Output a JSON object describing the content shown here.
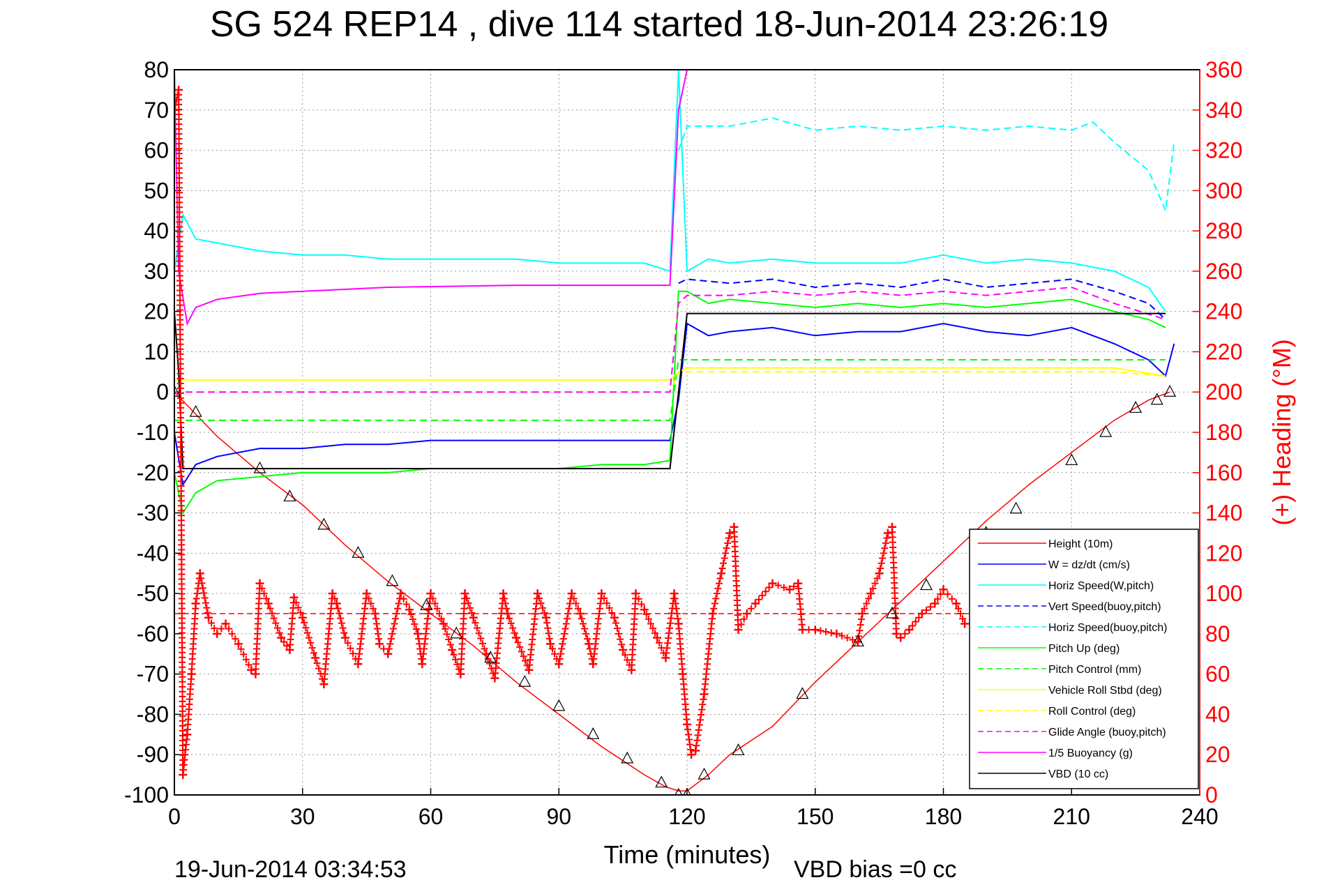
{
  "chart_data": {
    "type": "line",
    "title": "SG 524   REP14  , dive 114 started 18-Jun-2014 23:26:19",
    "xlabel": "Time (minutes)",
    "y2label": "(+) Heading (°M)",
    "footer_left": "19-Jun-2014 03:34:53",
    "footer_right": "VBD bias =0 cc",
    "xlim": [
      0,
      240
    ],
    "ylim": [
      -100,
      80
    ],
    "y2lim": [
      0,
      360
    ],
    "xticks": [
      0,
      30,
      60,
      90,
      120,
      150,
      180,
      210,
      240
    ],
    "yticks": [
      80,
      70,
      60,
      50,
      40,
      30,
      20,
      10,
      0,
      -10,
      -20,
      -30,
      -40,
      -50,
      -60,
      -70,
      -80,
      -90,
      -100
    ],
    "y2ticks": [
      360,
      340,
      320,
      300,
      280,
      260,
      240,
      220,
      200,
      180,
      160,
      140,
      120,
      100,
      80,
      60,
      40,
      20,
      0
    ],
    "grid": true,
    "legend_position": "lower-right",
    "colors": {
      "red": "#ff0000",
      "blue": "#0000ff",
      "cyan": "#00ffff",
      "green": "#00ff00",
      "yellow": "#ffff00",
      "magenta": "#ff00ff",
      "black": "#000000"
    },
    "series": [
      {
        "name": "Height (10m)",
        "color": "#ff0000",
        "style": "solid",
        "x": [
          0,
          10,
          20,
          30,
          40,
          50,
          60,
          70,
          80,
          90,
          100,
          110,
          115,
          118,
          120,
          125,
          130,
          140,
          150,
          160,
          170,
          180,
          190,
          200,
          210,
          220,
          228,
          233
        ],
        "values": [
          0,
          -11,
          -20,
          -28,
          -38,
          -47,
          -55,
          -63,
          -72,
          -80,
          -88,
          -95,
          -98,
          -99,
          -99,
          -95,
          -90,
          -83,
          -72,
          -62,
          -52,
          -42,
          -32,
          -23,
          -15,
          -7,
          -2,
          0
        ]
      },
      {
        "name": "W = dz/dt (cm/s)",
        "color": "#0000ff",
        "style": "solid",
        "x": [
          0,
          2,
          5,
          10,
          20,
          30,
          40,
          50,
          60,
          70,
          80,
          90,
          100,
          110,
          116,
          118,
          120,
          125,
          130,
          140,
          150,
          160,
          170,
          180,
          190,
          200,
          210,
          220,
          228,
          232,
          234
        ],
        "values": [
          -10,
          -23,
          -18,
          -16,
          -14,
          -14,
          -13,
          -13,
          -12,
          -12,
          -12,
          -12,
          -12,
          -12,
          -12,
          -2,
          17,
          14,
          15,
          16,
          14,
          15,
          15,
          17,
          15,
          14,
          16,
          12,
          8,
          4,
          12
        ]
      },
      {
        "name": "Horiz Speed(W,pitch)",
        "color": "#00ffff",
        "style": "solid",
        "x": [
          0,
          2,
          5,
          10,
          20,
          30,
          40,
          50,
          60,
          70,
          80,
          90,
          100,
          110,
          116,
          118,
          120,
          125,
          130,
          140,
          150,
          160,
          170,
          180,
          190,
          200,
          210,
          220,
          228,
          232
        ],
        "values": [
          30,
          44,
          38,
          37,
          35,
          34,
          34,
          33,
          33,
          33,
          33,
          32,
          32,
          32,
          30,
          80,
          30,
          33,
          32,
          33,
          32,
          32,
          32,
          34,
          32,
          33,
          32,
          30,
          26,
          20
        ]
      },
      {
        "name": "Vert Speed(buoy,pitch)",
        "color": "#0000ff",
        "style": "dashed",
        "x": [
          118,
          120,
          130,
          140,
          150,
          160,
          170,
          180,
          190,
          200,
          210,
          220,
          228,
          232
        ],
        "values": [
          27,
          28,
          27,
          28,
          26,
          27,
          26,
          28,
          26,
          27,
          28,
          25,
          22,
          18
        ]
      },
      {
        "name": "Horiz Speed(buoy,pitch)",
        "color": "#00ffff",
        "style": "dashed",
        "x": [
          118,
          120,
          130,
          140,
          150,
          160,
          170,
          180,
          190,
          200,
          210,
          215,
          220,
          228,
          232,
          234
        ],
        "values": [
          60,
          66,
          66,
          68,
          65,
          66,
          65,
          66,
          65,
          66,
          65,
          67,
          62,
          55,
          45,
          62
        ]
      },
      {
        "name": "Pitch Up (deg)",
        "color": "#00ff00",
        "style": "solid",
        "x": [
          0,
          2,
          5,
          10,
          20,
          30,
          40,
          50,
          60,
          70,
          80,
          90,
          100,
          110,
          116,
          118,
          120,
          125,
          130,
          140,
          150,
          160,
          170,
          180,
          190,
          200,
          210,
          220,
          228,
          232
        ],
        "values": [
          -20,
          -30,
          -25,
          -22,
          -21,
          -20,
          -20,
          -20,
          -19,
          -19,
          -19,
          -19,
          -18,
          -18,
          -17,
          25,
          25,
          22,
          23,
          22,
          21,
          22,
          21,
          22,
          21,
          22,
          23,
          20,
          18,
          16
        ]
      },
      {
        "name": "Pitch Control (mm)",
        "color": "#00ff00",
        "style": "dashed",
        "x": [
          0,
          5,
          10,
          30,
          60,
          90,
          116,
          118,
          120,
          130,
          140,
          150,
          160,
          170,
          180,
          190,
          200,
          210,
          220,
          232
        ],
        "values": [
          -7,
          -7,
          -7,
          -7,
          -7,
          -7,
          -7,
          8,
          8,
          8,
          8,
          8,
          8,
          8,
          8,
          8,
          8,
          8,
          8,
          8
        ]
      },
      {
        "name": "Vehicle Roll Stbd (deg)",
        "color": "#ffff00",
        "style": "solid",
        "x": [
          0,
          5,
          10,
          30,
          60,
          90,
          116,
          118,
          120,
          130,
          140,
          150,
          160,
          170,
          180,
          190,
          200,
          210,
          220,
          232
        ],
        "values": [
          3,
          3,
          3,
          3,
          3,
          3,
          3,
          5,
          6,
          6,
          6,
          6,
          6,
          6,
          6,
          6,
          6,
          6,
          6,
          4
        ]
      },
      {
        "name": "Roll Control (deg)",
        "color": "#ffff00",
        "style": "dashed",
        "x": [
          0,
          5,
          10,
          30,
          60,
          90,
          116,
          118,
          120,
          130,
          140,
          150,
          160,
          170,
          180,
          190,
          200,
          210,
          220,
          232
        ],
        "values": [
          0,
          0,
          0,
          0,
          0,
          0,
          0,
          5,
          5,
          5,
          5,
          5,
          5,
          5,
          5,
          5,
          5,
          5,
          5,
          4
        ]
      },
      {
        "name": "Glide Angle (buoy,pitch)",
        "color": "#ff00ff",
        "style": "dashed",
        "x": [
          0,
          10,
          30,
          60,
          90,
          116,
          118,
          120,
          130,
          140,
          150,
          160,
          170,
          180,
          190,
          200,
          210,
          220,
          232
        ],
        "values": [
          0,
          0,
          0,
          0,
          0,
          0,
          22,
          24,
          24,
          25,
          24,
          25,
          24,
          25,
          24,
          25,
          26,
          22,
          18
        ]
      },
      {
        "name": "1/5 Buoyancy (g)",
        "color": "#ff00ff",
        "style": "solid",
        "x": [
          0,
          1,
          3,
          5,
          10,
          20,
          30,
          50,
          80,
          100,
          116,
          118,
          120
        ],
        "values": [
          80,
          30,
          17,
          21,
          23,
          24.5,
          25,
          26,
          26.5,
          26.5,
          26.5,
          70,
          80
        ]
      },
      {
        "name": "VBD (10 cc)",
        "color": "#000000",
        "style": "solid",
        "x": [
          0,
          1,
          2,
          116,
          118,
          120,
          130,
          160,
          200,
          230,
          232
        ],
        "values": [
          20,
          5,
          -19,
          -19,
          0,
          19.5,
          19.5,
          19.5,
          19.5,
          19.5,
          19.5
        ]
      }
    ],
    "heading_series": {
      "color": "#ff0000",
      "marker": "+",
      "axis": "right",
      "x": [
        0,
        1,
        2,
        3,
        4,
        5,
        6,
        8,
        10,
        12,
        15,
        18,
        19,
        20,
        22,
        25,
        27,
        28,
        30,
        33,
        35,
        37,
        38,
        40,
        43,
        45,
        47,
        48,
        50,
        53,
        55,
        57,
        58,
        60,
        63,
        65,
        67,
        68,
        70,
        73,
        75,
        77,
        78,
        80,
        83,
        85,
        87,
        88,
        90,
        93,
        95,
        97,
        98,
        100,
        103,
        105,
        107,
        108,
        110,
        113,
        115,
        117,
        118,
        119,
        120,
        121,
        122,
        124,
        126,
        128,
        130,
        131,
        132,
        134,
        136,
        140,
        144,
        146,
        147,
        150,
        155,
        160,
        161,
        163,
        165,
        167,
        168,
        169,
        170,
        172,
        175,
        178,
        180,
        183,
        185
      ],
      "values": [
        340,
        350,
        10,
        30,
        60,
        95,
        110,
        88,
        80,
        85,
        75,
        62,
        60,
        105,
        95,
        78,
        72,
        98,
        88,
        68,
        55,
        100,
        95,
        78,
        65,
        100,
        90,
        75,
        70,
        100,
        92,
        80,
        65,
        100,
        85,
        72,
        60,
        100,
        88,
        70,
        58,
        100,
        90,
        78,
        62,
        100,
        88,
        75,
        65,
        100,
        90,
        75,
        65,
        100,
        88,
        72,
        62,
        100,
        92,
        78,
        68,
        100,
        85,
        60,
        35,
        20,
        22,
        50,
        90,
        110,
        130,
        133,
        82,
        90,
        95,
        105,
        102,
        105,
        82,
        82,
        80,
        76,
        90,
        100,
        110,
        130,
        133,
        80,
        78,
        82,
        90,
        95,
        102,
        95,
        85
      ]
    },
    "heading_reference": {
      "value": 90,
      "color": "#ff0000",
      "style": "dashed",
      "x": [
        0,
        232
      ]
    },
    "markers": {
      "x": [
        0,
        5,
        20,
        27,
        35,
        43,
        51,
        59,
        66,
        74,
        82,
        90,
        98,
        106,
        114,
        118,
        120,
        124,
        132,
        147,
        160,
        168,
        176,
        190,
        197,
        210,
        218,
        225,
        230,
        233
      ],
      "values": [
        0,
        -5,
        -19,
        -26,
        -33,
        -40,
        -47,
        -53,
        -60,
        -66,
        -72,
        -78,
        -85,
        -91,
        -97,
        -100,
        -100,
        -95,
        -89,
        -75,
        -62,
        -55,
        -48,
        -35,
        -29,
        -17,
        -10,
        -4,
        -2,
        0
      ]
    }
  }
}
